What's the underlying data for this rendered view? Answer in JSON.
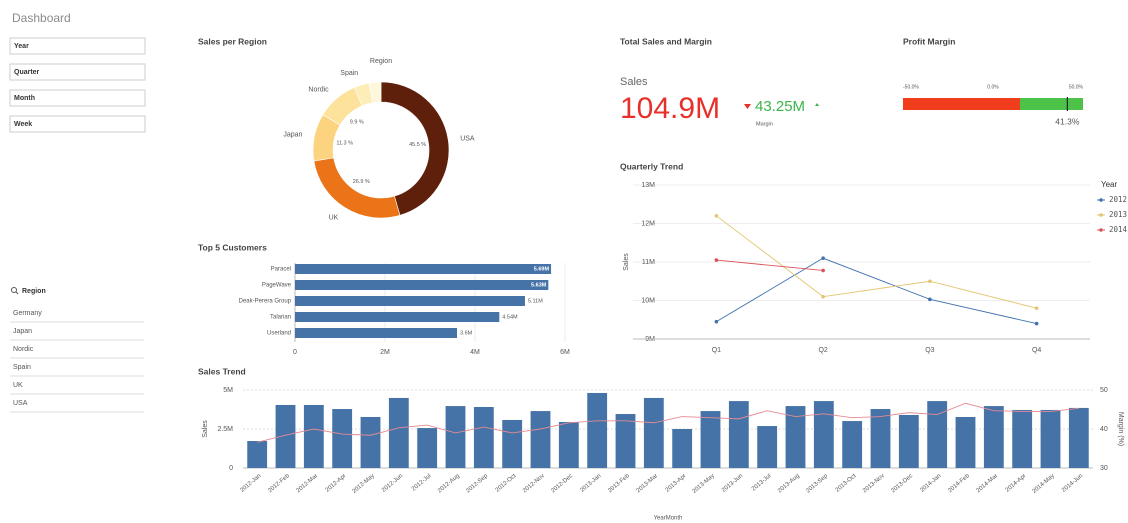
{
  "header": {
    "title": "Dashboard"
  },
  "filters": [
    "Year",
    "Quarter",
    "Month",
    "Week"
  ],
  "region_list": {
    "title": "Region",
    "items": [
      "Germany",
      "Japan",
      "Nordic",
      "Spain",
      "UK",
      "USA"
    ]
  },
  "kpi": {
    "title": "Total Sales and Margin",
    "label": "Sales",
    "value": "104.9M",
    "secondary_value": "43.25M",
    "secondary_label": "Margin"
  },
  "chart_data": [
    {
      "type": "donut",
      "title": "Sales per Region",
      "legend_title": "Region",
      "categories": [
        "USA",
        "UK",
        "Japan",
        "Nordic",
        "Spain",
        null
      ],
      "values": [
        45.5,
        26.9,
        11.3,
        9.9,
        3.6,
        2.8
      ],
      "value_labels": [
        "45.5 %",
        "26.9 %",
        "11.3 %",
        "9.9 %",
        null,
        null
      ],
      "colors": [
        "#5e1f0b",
        "#ea7417",
        "#fcd37e",
        "#fde29c",
        "#fdeeb8",
        "#fff7dc"
      ]
    },
    {
      "type": "hbar",
      "title": "Top 5 Customers",
      "categories": [
        "Paracel",
        "PageWave",
        "Deak-Perera Group",
        "Talarian",
        "Userland"
      ],
      "values": [
        5690000,
        5630000,
        5110000,
        4540000,
        3600000
      ],
      "value_labels": [
        "5.69M",
        "5.63M",
        "5.11M",
        "4.54M",
        "3.6M"
      ],
      "color": "#4573a7",
      "xlim": [
        0,
        6000000
      ],
      "xticks": [
        0,
        {
          "value": 2000000,
          "label": "2M"
        },
        {
          "value": 4000000,
          "label": "4M"
        },
        {
          "value": 6000000,
          "label": "6M"
        }
      ],
      "grid": true
    },
    {
      "type": "gauge",
      "title": "Profit Margin",
      "value": 41.3,
      "value_label": "41.3%",
      "xlim": [
        -50,
        50
      ],
      "xticks": [
        {
          "value": -50,
          "label": "-50.0%"
        },
        {
          "value": 0,
          "label": "0.0%"
        },
        {
          "value": 50,
          "label": "50.0%"
        }
      ],
      "bands": [
        {
          "from": -50,
          "to": 15,
          "color": "#f23d1c"
        },
        {
          "from": 15,
          "to": 50,
          "color": "#4dc248"
        }
      ]
    },
    {
      "type": "line",
      "title": "Quarterly Trend",
      "y_label": "Sales",
      "legend_title": "Year",
      "categories": [
        "Q1",
        "Q2",
        "Q3",
        "Q4"
      ],
      "series": [
        {
          "name": "2012",
          "color": "#3f72ae",
          "values": [
            9450000,
            11100000,
            10030000,
            9400000
          ]
        },
        {
          "name": "2013",
          "color": "#e3c56f",
          "values": [
            12200000,
            10100000,
            10500000,
            9800000
          ]
        },
        {
          "name": "2014",
          "color": "#d95459",
          "values": [
            11050000,
            10780000,
            null,
            null
          ]
        }
      ],
      "ylim": [
        9000000,
        13000000
      ],
      "yticks": [
        {
          "value": 9000000,
          "label": "9M"
        },
        {
          "value": 10000000,
          "label": "10M"
        },
        {
          "value": 11000000,
          "label": "11M"
        },
        {
          "value": 12000000,
          "label": "12M"
        },
        {
          "value": 13000000,
          "label": "13M"
        }
      ],
      "grid": true,
      "legend": "right"
    },
    {
      "type": "combo",
      "title": "Sales Trend",
      "x_label": "YearMonth",
      "y_label": "Sales",
      "y2_label": "Margin (%)",
      "categories": [
        "2012-Jan",
        "2012-Feb",
        "2012-Mar",
        "2012-Apr",
        "2012-May",
        "2012-Jun",
        "2012-Jul",
        "2012-Aug",
        "2012-Sep",
        "2012-Oct",
        "2012-Nov",
        "2012-Dec",
        "2013-Jan",
        "2013-Feb",
        "2013-Mar",
        "2013-Apr",
        "2013-May",
        "2013-Jun",
        "2013-Jul",
        "2013-Aug",
        "2013-Sep",
        "2013-Oct",
        "2013-Nov",
        "2013-Dec",
        "2014-Jan",
        "2014-Feb",
        "2014-Mar",
        "2014-Apr",
        "2014-May",
        "2014-Jun"
      ],
      "series": [
        {
          "type": "bar",
          "color": "#4573a7",
          "values": [
            1730000,
            4040000,
            4040000,
            3780000,
            3270000,
            4490000,
            2560000,
            3970000,
            3910000,
            3080000,
            3650000,
            2950000,
            4810000,
            3460000,
            4490000,
            2500000,
            3650000,
            4290000,
            2690000,
            3970000,
            4290000,
            3010000,
            3780000,
            3400000,
            4290000,
            3270000,
            3970000,
            3720000,
            3720000,
            3850000
          ]
        },
        {
          "type": "line",
          "axis": "y2",
          "color": "#e58a93",
          "values": [
            36.6,
            38.4,
            40,
            38.7,
            38.4,
            40.3,
            41,
            39,
            40.5,
            39,
            40,
            41.6,
            42.1,
            42.1,
            41.6,
            43.2,
            42.9,
            42.6,
            44.7,
            43.2,
            43.9,
            42.9,
            43.2,
            44.2,
            43.7,
            46.6,
            44.7,
            44.5,
            44.5,
            45.3
          ]
        }
      ],
      "ylim": [
        0,
        5000000
      ],
      "yticks": [
        0,
        {
          "value": 2500000,
          "label": "2.5M"
        },
        {
          "value": 5000000,
          "label": "5M"
        }
      ],
      "y2lim": [
        30,
        50
      ],
      "y2ticks": [
        30,
        40,
        50
      ],
      "grid": true
    }
  ]
}
